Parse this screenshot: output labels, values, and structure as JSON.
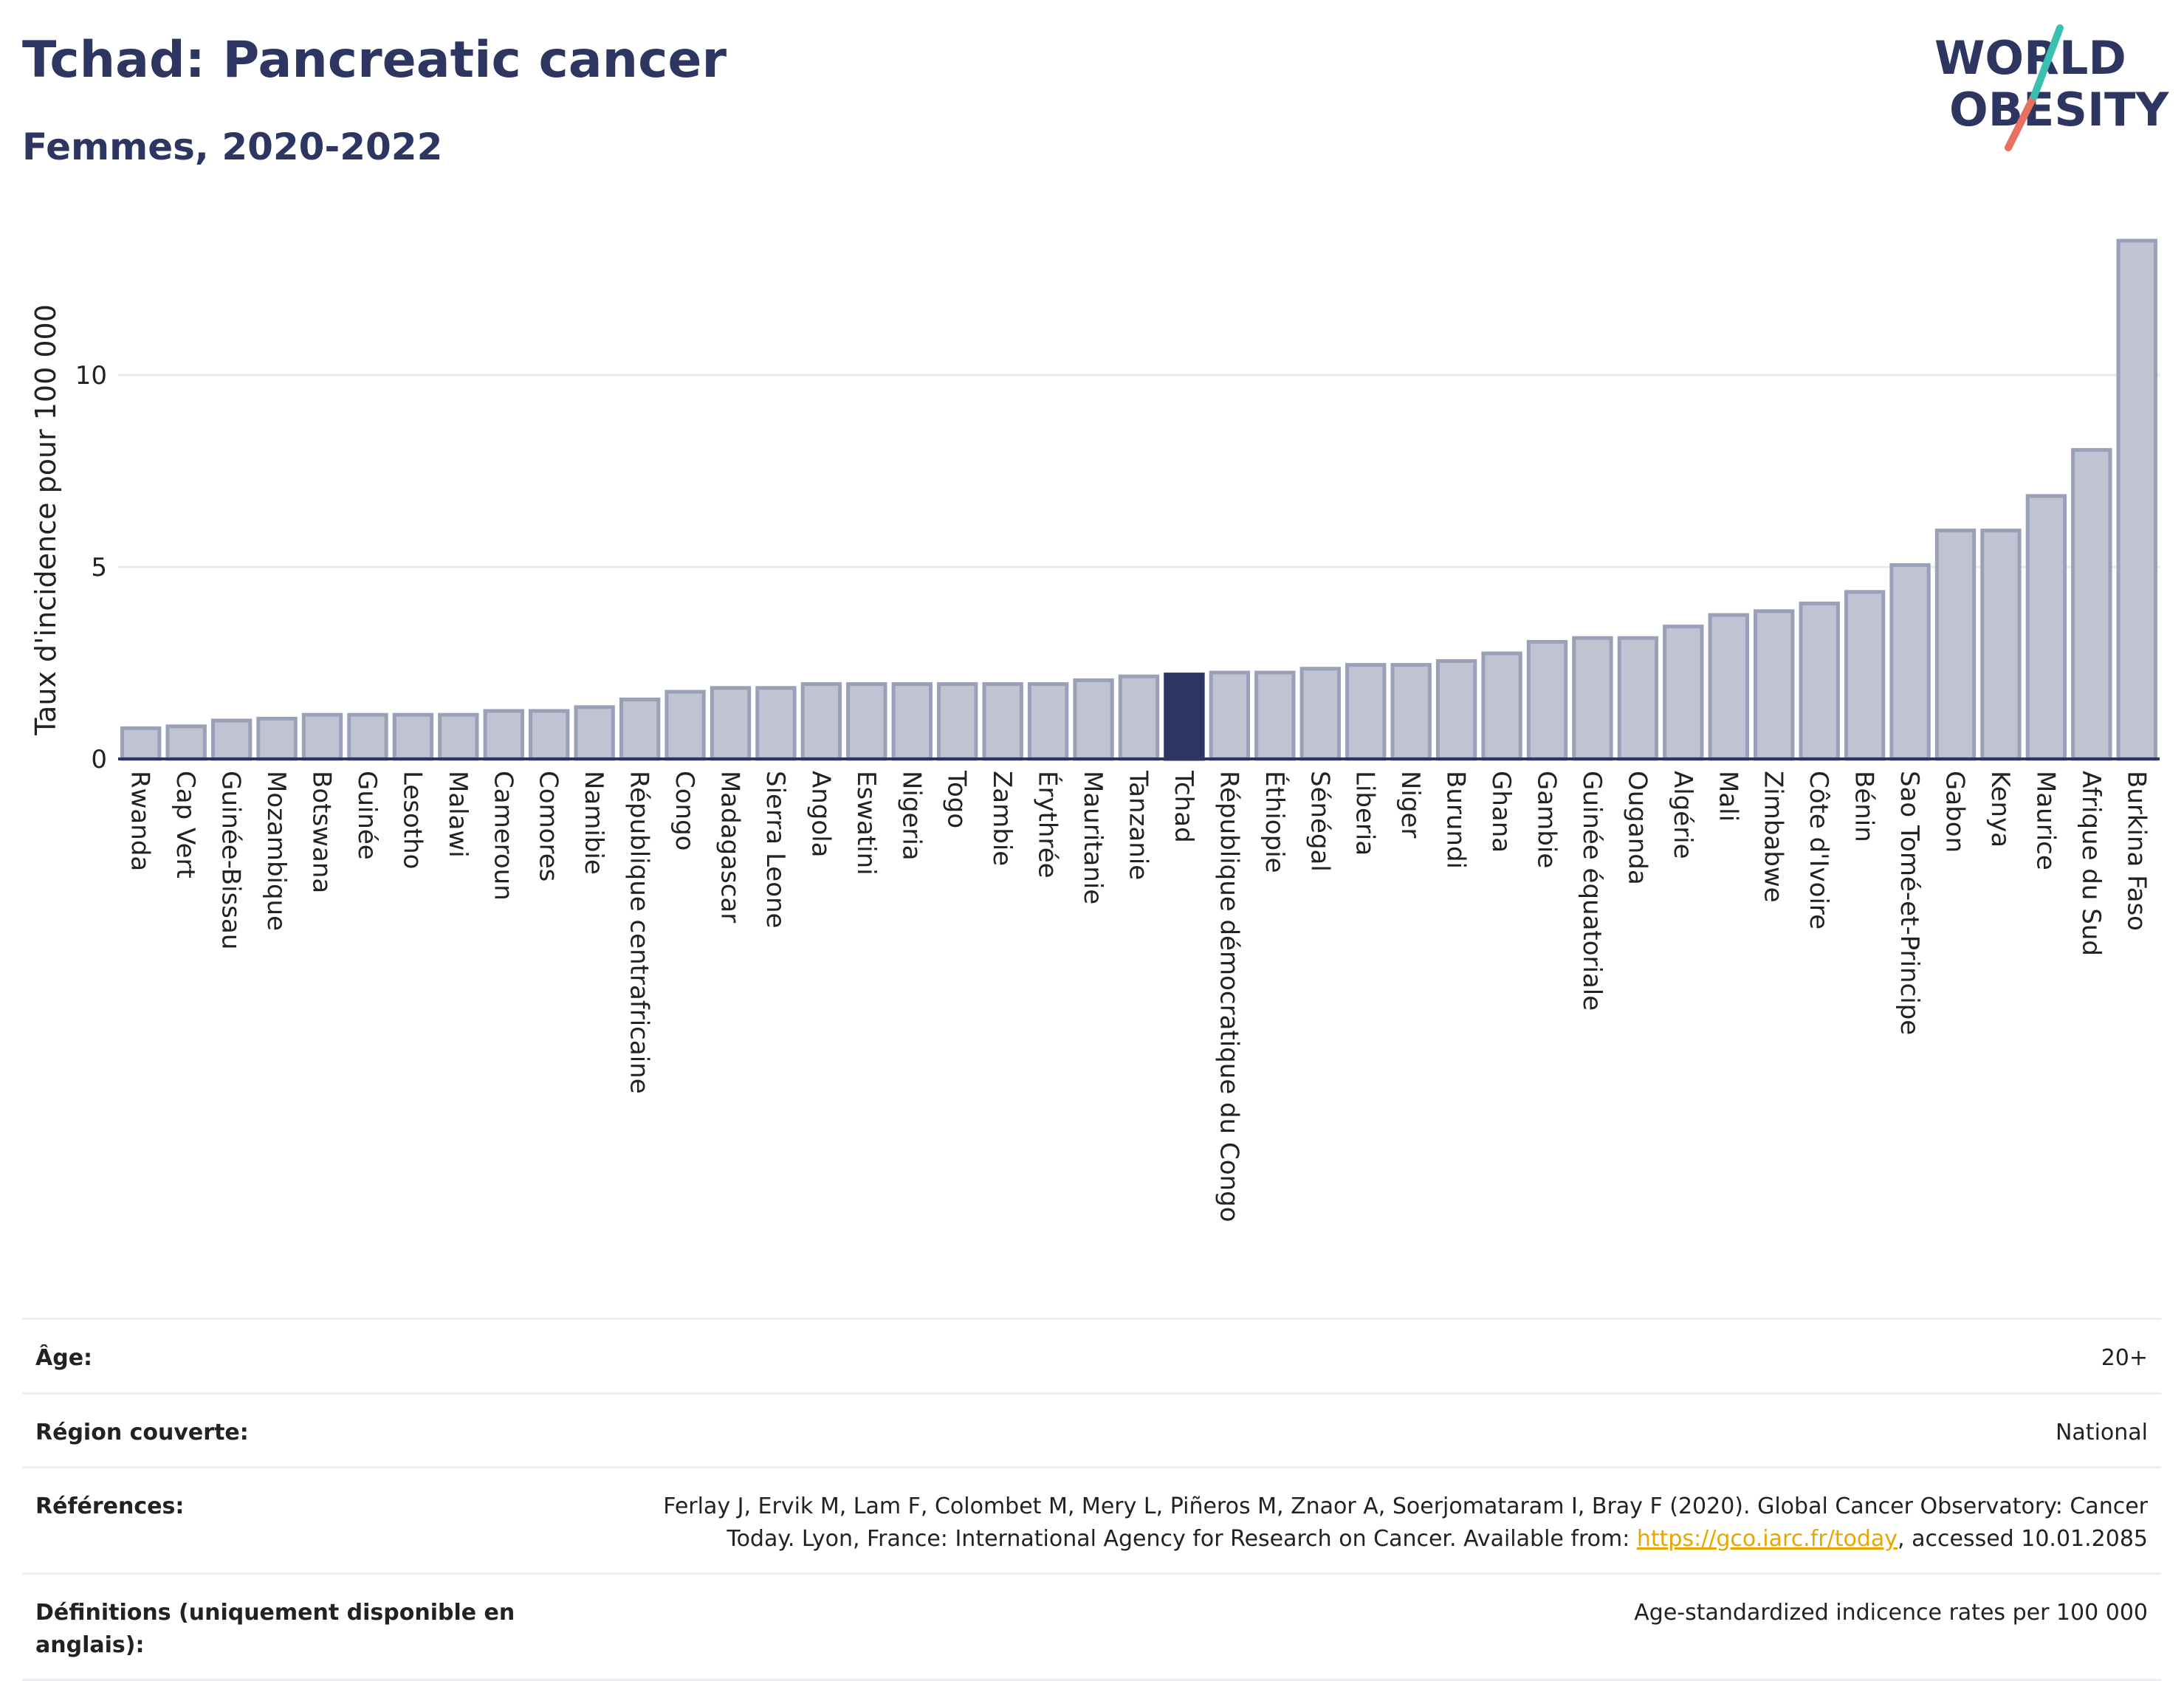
{
  "header": {
    "title": "Tchad: Pancreatic cancer",
    "subtitle": "Femmes, 2020-2022",
    "logo_line1": "WORLD",
    "logo_line2": "OBESITY"
  },
  "colors": {
    "bar": "#bfc3d2",
    "bar_border": "#9aa0b8",
    "highlight": "#2d3561",
    "title": "#2d3561",
    "grid": "#e6e8ee",
    "axis": "#2d3561",
    "link": "#e6a700",
    "logo_teal": "#3bbfb0",
    "logo_coral": "#e8705f"
  },
  "chart_data": {
    "type": "bar",
    "ylabel": "Taux d'incidence pour 100 000",
    "xlabel": "",
    "ylim": [
      0,
      14
    ],
    "yticks": [
      0,
      5,
      10
    ],
    "grid": true,
    "highlight": "Tchad",
    "categories": [
      "Rwanda",
      "Cap Vert",
      "Guinée-Bissau",
      "Mozambique",
      "Botswana",
      "Guinée",
      "Lesotho",
      "Malawi",
      "Cameroun",
      "Comores",
      "Namibie",
      "République centrafricaine",
      "Congo",
      "Madagascar",
      "Sierra Leone",
      "Angola",
      "Eswatini",
      "Nigeria",
      "Togo",
      "Zambie",
      "Érythrée",
      "Mauritanie",
      "Tanzanie",
      "Tchad",
      "République démocratique du Congo",
      "Éthiopie",
      "Sénégal",
      "Liberia",
      "Niger",
      "Burundi",
      "Ghana",
      "Gambie",
      "Guinée équatoriale",
      "Ouganda",
      "Algérie",
      "Mali",
      "Zimbabwe",
      "Côte d'Ivoire",
      "Bénin",
      "Sao Tomé-et-Principe",
      "Gabon",
      "Kenya",
      "Maurice",
      "Afrique du Sud",
      "Burkina Faso"
    ],
    "values": [
      0.8,
      0.85,
      1.0,
      1.05,
      1.15,
      1.15,
      1.15,
      1.15,
      1.25,
      1.25,
      1.35,
      1.55,
      1.75,
      1.85,
      1.85,
      1.95,
      1.95,
      1.95,
      1.95,
      1.95,
      1.95,
      2.05,
      2.15,
      2.2,
      2.25,
      2.25,
      2.35,
      2.45,
      2.45,
      2.55,
      2.75,
      3.05,
      3.15,
      3.15,
      3.45,
      3.75,
      3.85,
      4.05,
      4.35,
      5.05,
      5.95,
      5.95,
      6.85,
      8.05,
      13.5
    ]
  },
  "meta": [
    {
      "label": "Âge:",
      "value": "20+"
    },
    {
      "label": "Région couverte:",
      "value": "National"
    },
    {
      "label": "Références:",
      "value_before": "Ferlay J, Ervik M, Lam F, Colombet M, Mery L, Piñeros M, Znaor A, Soerjomataram I, Bray F (2020). Global Cancer Observatory: Cancer Today. Lyon, France: International Agency for Research on Cancer. Available from: ",
      "link": "https://gco.iarc.fr/today",
      "value_after": ", accessed 10.01.2085"
    },
    {
      "label": "Définitions (uniquement disponible en anglais):",
      "value": "Age-standardized indicence rates per 100 000"
    }
  ]
}
